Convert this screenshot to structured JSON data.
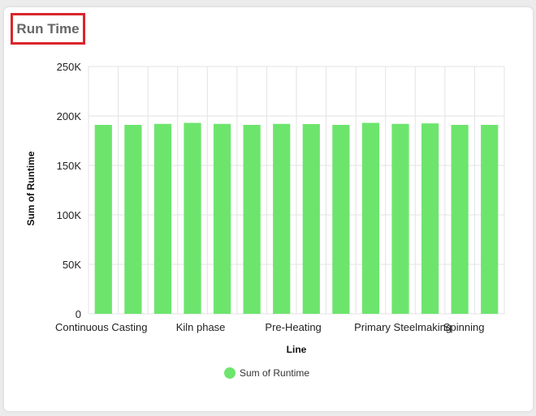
{
  "panel": {
    "title": "Run Time"
  },
  "chart_data": {
    "type": "bar",
    "title": "Run Time",
    "xlabel": "Line",
    "ylabel": "Sum of Runtime",
    "ylim": [
      0,
      250000
    ],
    "yticks": [
      0,
      50000,
      100000,
      150000,
      200000,
      250000
    ],
    "ytick_labels": [
      "0",
      "50K",
      "100K",
      "150K",
      "200K",
      "250K"
    ],
    "categories": [
      "Continuous Casting",
      "",
      "",
      "Kiln phase",
      "",
      "",
      "Pre-Heating",
      "",
      "",
      "Primary Steelmaking",
      "",
      "",
      "Spinning",
      ""
    ],
    "visible_x_labels": [
      {
        "label": "Continuous Casting",
        "index": 0
      },
      {
        "label": "Kiln phase",
        "index": 3
      },
      {
        "label": "Pre-Heating",
        "index": 6
      },
      {
        "label": "Primary Steelmaking",
        "index": 9
      },
      {
        "label": "Spinning",
        "index": 12
      }
    ],
    "series": [
      {
        "name": "Sum of Runtime",
        "color": "#6de56d",
        "values": [
          191000,
          191000,
          192000,
          193000,
          192000,
          191000,
          192000,
          191800,
          191000,
          193000,
          192000,
          192500,
          191000,
          191000
        ]
      }
    ],
    "legend_position": "bottom-center",
    "grid": true
  }
}
